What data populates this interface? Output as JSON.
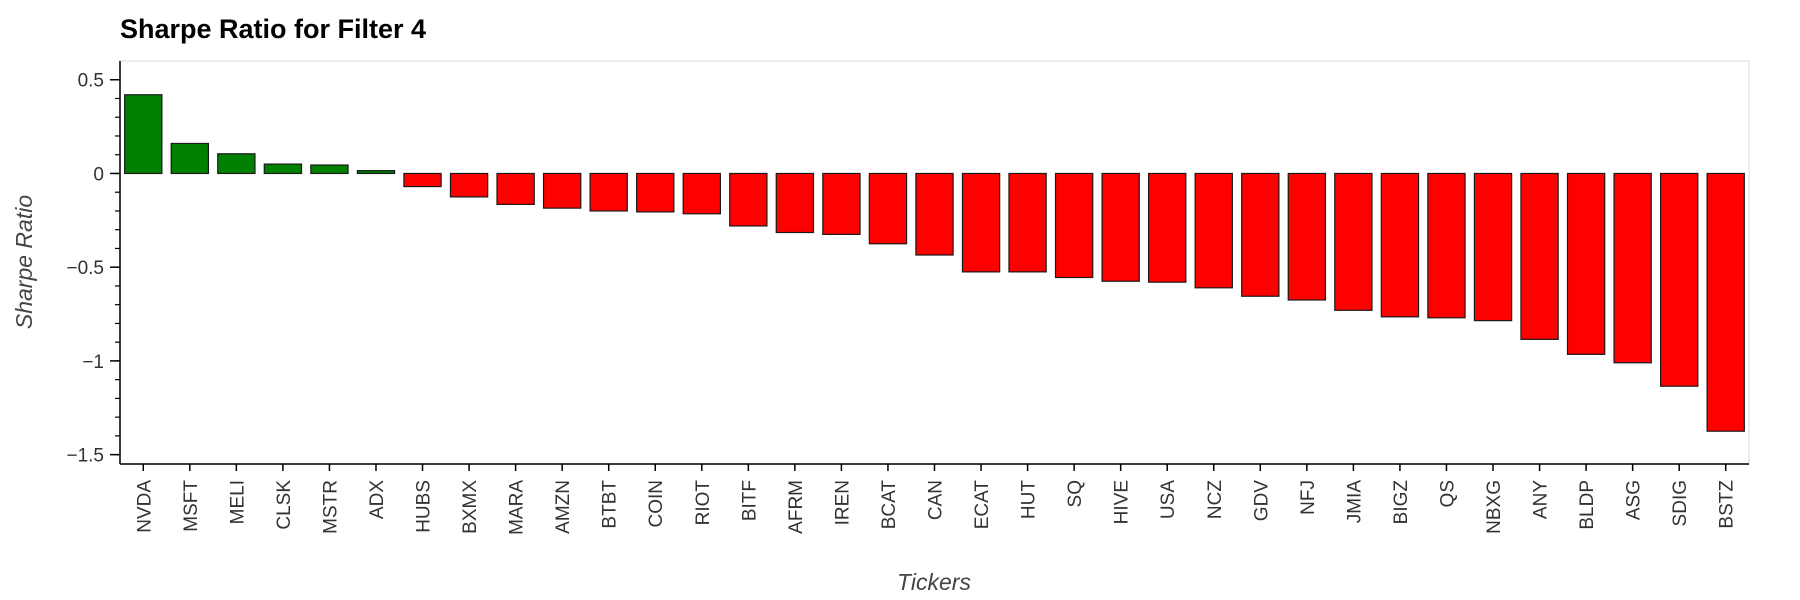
{
  "chart_data": {
    "type": "bar",
    "title": "Sharpe Ratio for Filter 4",
    "xlabel": "Tickers",
    "ylabel": "Sharpe Ratio",
    "ylim": [
      -1.55,
      0.6
    ],
    "yticks": [
      0.5,
      0,
      -0.5,
      -1,
      -1.5
    ],
    "ytick_labels": [
      "0.5",
      "0",
      "−0.5",
      "−1",
      "−1.5"
    ],
    "categories": [
      "NVDA",
      "MSFT",
      "MELI",
      "CLSK",
      "MSTR",
      "ADX",
      "HUBS",
      "BXMX",
      "MARA",
      "AMZN",
      "BTBT",
      "COIN",
      "RIOT",
      "BITF",
      "AFRM",
      "IREN",
      "BCAT",
      "CAN",
      "ECAT",
      "HUT",
      "SQ",
      "HIVE",
      "USA",
      "NCZ",
      "GDV",
      "NFJ",
      "JMIA",
      "BIGZ",
      "QS",
      "NBXG",
      "ANY",
      "BLDP",
      "ASG",
      "SDIG",
      "BSTZ"
    ],
    "values": [
      0.42,
      0.16,
      0.105,
      0.05,
      0.045,
      0.015,
      -0.07,
      -0.125,
      -0.165,
      -0.185,
      -0.2,
      -0.205,
      -0.215,
      -0.28,
      -0.315,
      -0.325,
      -0.375,
      -0.435,
      -0.525,
      -0.525,
      -0.555,
      -0.575,
      -0.58,
      -0.61,
      -0.655,
      -0.675,
      -0.73,
      -0.765,
      -0.77,
      -0.785,
      -0.885,
      -0.965,
      -1.01,
      -1.135,
      -1.375
    ],
    "positive_color": "#008000",
    "negative_color": "#ff0000",
    "grid": false
  }
}
